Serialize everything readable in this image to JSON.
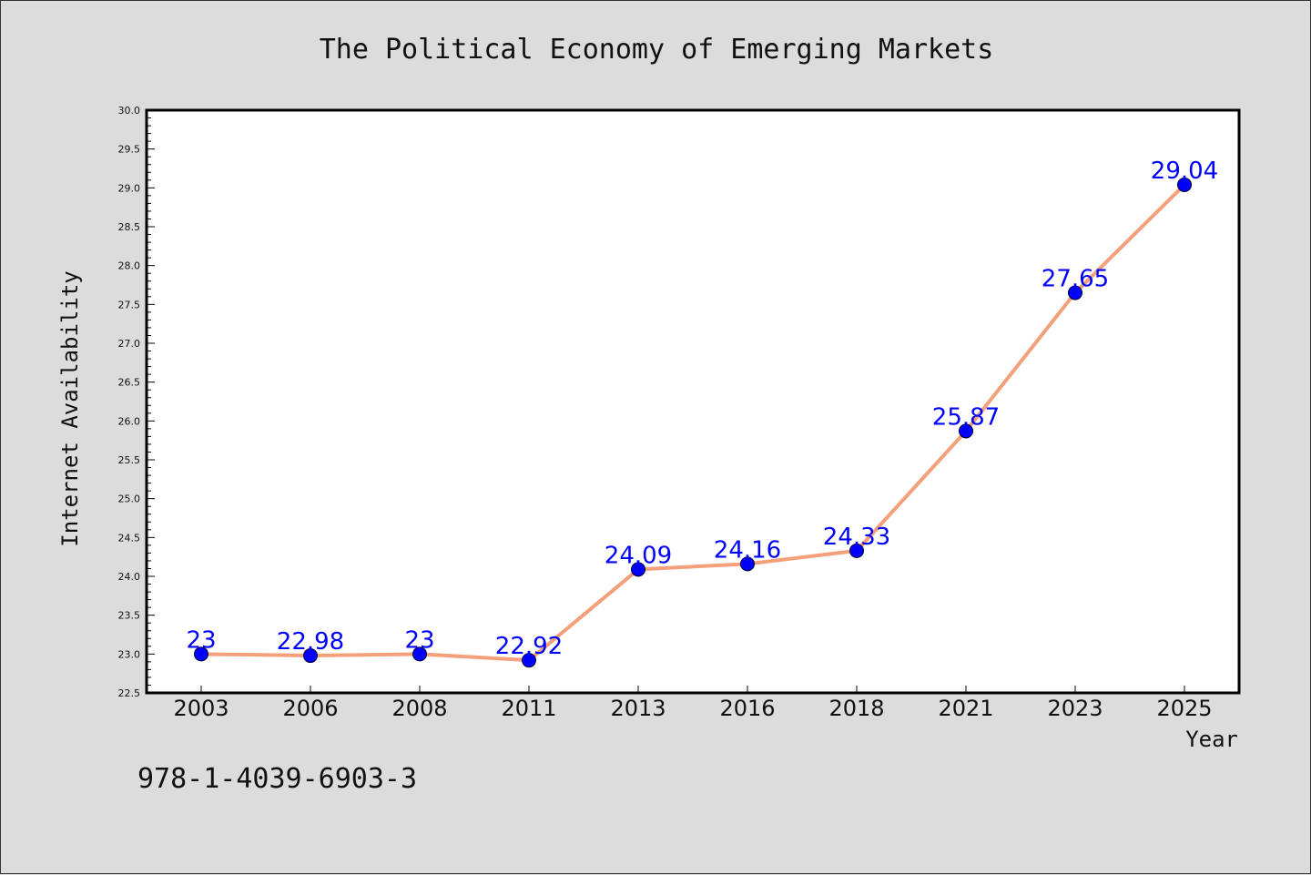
{
  "footer": {
    "isbn": "978-1-4039-6903-3"
  },
  "chart_data": {
    "type": "line",
    "title": "The Political Economy of Emerging Markets",
    "xlabel": "Year",
    "ylabel": "Internet Availability",
    "ylim": [
      22.5,
      30.0
    ],
    "ytick_step": 0.5,
    "grid": false,
    "categories": [
      "2003",
      "2006",
      "2008",
      "2011",
      "2013",
      "2016",
      "2018",
      "2021",
      "2023",
      "2025"
    ],
    "series": [
      {
        "values": [
          23,
          22.98,
          23,
          22.92,
          24.09,
          24.16,
          24.33,
          25.87,
          27.65,
          29.04
        ],
        "labels": [
          "23",
          "22.98",
          "23",
          "22.92",
          "24.09",
          "24.16",
          "24.33",
          "25.87",
          "27.65",
          "29.04"
        ],
        "line_color": "#f4a07a",
        "marker_color": "#0000ff",
        "label_color": "#0000ff"
      }
    ]
  }
}
